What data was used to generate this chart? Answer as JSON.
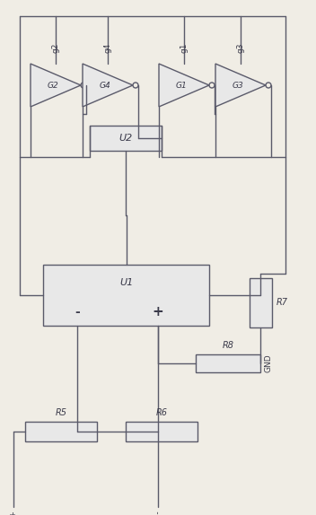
{
  "background_color": "#f0ede5",
  "line_color": "#5a5a6a",
  "line_width": 1.0,
  "box_color": "#e8e8e8",
  "box_edge": "#5a5a6a",
  "text_color": "#3a3a4a",
  "fig_width": 3.52,
  "fig_height": 5.74,
  "dpi": 100,
  "gate_labels": [
    "G2",
    "G4",
    "G1",
    "G3"
  ],
  "gate_top_labels": [
    "g2",
    "g4",
    "g1",
    "g3"
  ],
  "u2_label": "U2",
  "u1_label": "U1",
  "u1_minus": "-",
  "u1_plus": "+",
  "gnd_label": "GND",
  "inp_label": "IN+",
  "inn_label": "IN-"
}
